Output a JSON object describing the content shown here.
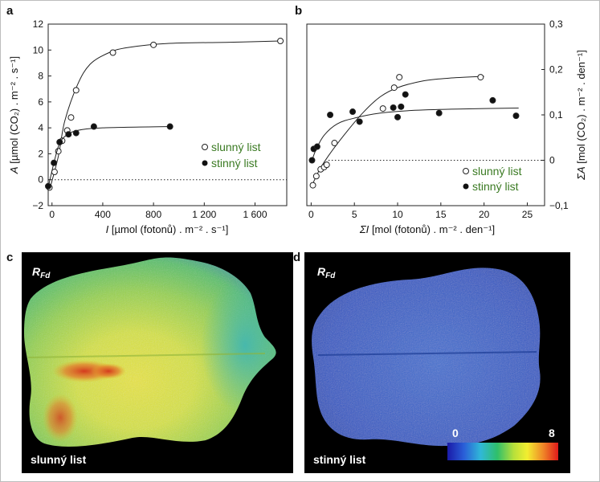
{
  "chart_data": [
    {
      "panel": "a",
      "type": "scatter",
      "xlabel_var": "I",
      "xlabel": "[µmol (fotonů) . m⁻² . s⁻¹]",
      "ylabel_var": "A",
      "ylabel": "[µmol (CO₂) . m⁻² . s⁻¹]",
      "xlim": [
        -30,
        1850
      ],
      "ylim": [
        -2,
        12
      ],
      "x_ticks": [
        0,
        400,
        800,
        1200,
        1600
      ],
      "x_tick_labels": [
        "0",
        "400",
        "800",
        "1 200",
        "1 600"
      ],
      "y_ticks": [
        -2,
        0,
        2,
        4,
        6,
        8,
        10,
        12
      ],
      "y_tick_labels": [
        "−2",
        "0",
        "2",
        "4",
        "6",
        "8",
        "10",
        "12"
      ],
      "reference_line_y": 0,
      "legend_position": "bottom-right",
      "series": [
        {
          "name": "slunný list",
          "marker": "open-circle",
          "points": [
            [
              -20,
              -0.6
            ],
            [
              20,
              0.6
            ],
            [
              50,
              2.2
            ],
            [
              80,
              3.0
            ],
            [
              120,
              3.8
            ],
            [
              150,
              4.8
            ],
            [
              190,
              6.9
            ],
            [
              480,
              9.8
            ],
            [
              800,
              10.4
            ],
            [
              1800,
              10.7
            ]
          ],
          "fit": [
            [
              -20,
              -0.8
            ],
            [
              50,
              1.8
            ],
            [
              100,
              4.5
            ],
            [
              200,
              7.3
            ],
            [
              300,
              8.9
            ],
            [
              450,
              9.8
            ],
            [
              600,
              10.2
            ],
            [
              900,
              10.5
            ],
            [
              1400,
              10.6
            ],
            [
              1800,
              10.7
            ]
          ]
        },
        {
          "name": "stinný list",
          "marker": "filled-circle",
          "points": [
            [
              -30,
              -0.5
            ],
            [
              15,
              1.3
            ],
            [
              60,
              2.9
            ],
            [
              130,
              3.5
            ],
            [
              190,
              3.6
            ],
            [
              330,
              4.1
            ],
            [
              930,
              4.1
            ]
          ],
          "fit": [
            [
              -30,
              -0.6
            ],
            [
              20,
              1.5
            ],
            [
              60,
              2.8
            ],
            [
              110,
              3.4
            ],
            [
              200,
              3.8
            ],
            [
              400,
              4.0
            ],
            [
              930,
              4.1
            ]
          ]
        }
      ]
    },
    {
      "panel": "b",
      "type": "scatter",
      "xlabel_var": "ΣI",
      "xlabel": "[mol (fotonů) . m⁻² . den⁻¹]",
      "ylabel_var": "ΣA",
      "ylabel": "[mol (CO₂) . m⁻² . den⁻¹]",
      "xlim": [
        -0.5,
        27
      ],
      "ylim": [
        -0.1,
        0.3
      ],
      "x_ticks": [
        0,
        5,
        10,
        15,
        20,
        25
      ],
      "x_tick_labels": [
        "0",
        "5",
        "10",
        "15",
        "20",
        "25"
      ],
      "y_ticks": [
        -0.1,
        0,
        0.1,
        0.2,
        0.3
      ],
      "y_tick_labels": [
        "−0,1",
        "0",
        "0,1",
        "0,2",
        "0,3"
      ],
      "reference_line_y": 0,
      "legend_position": "bottom-right",
      "series": [
        {
          "name": "slunný list",
          "marker": "open-circle",
          "points": [
            [
              0.2,
              -0.055
            ],
            [
              0.6,
              -0.035
            ],
            [
              1.1,
              -0.02
            ],
            [
              1.5,
              -0.015
            ],
            [
              1.8,
              -0.01
            ],
            [
              2.7,
              0.038
            ],
            [
              8.3,
              0.114
            ],
            [
              9.6,
              0.16
            ],
            [
              10.2,
              0.183
            ],
            [
              19.6,
              0.183
            ]
          ],
          "fit": [
            [
              0.1,
              -0.055
            ],
            [
              1,
              -0.02
            ],
            [
              2,
              0.01
            ],
            [
              4,
              0.06
            ],
            [
              6,
              0.105
            ],
            [
              8,
              0.14
            ],
            [
              10,
              0.16
            ],
            [
              13,
              0.175
            ],
            [
              16,
              0.181
            ],
            [
              20,
              0.185
            ]
          ]
        },
        {
          "name": "stinný list",
          "marker": "filled-circle",
          "points": [
            [
              0.1,
              0.0
            ],
            [
              0.3,
              0.025
            ],
            [
              0.7,
              0.03
            ],
            [
              2.2,
              0.1
            ],
            [
              4.8,
              0.107
            ],
            [
              5.6,
              0.085
            ],
            [
              9.5,
              0.116
            ],
            [
              10.0,
              0.095
            ],
            [
              10.4,
              0.118
            ],
            [
              10.9,
              0.145
            ],
            [
              14.8,
              0.104
            ],
            [
              21.0,
              0.132
            ],
            [
              23.7,
              0.098
            ]
          ],
          "fit": [
            [
              0.1,
              0.0
            ],
            [
              0.6,
              0.025
            ],
            [
              1.5,
              0.055
            ],
            [
              3,
              0.08
            ],
            [
              5,
              0.093
            ],
            [
              8,
              0.104
            ],
            [
              12,
              0.11
            ],
            [
              17,
              0.113
            ],
            [
              24,
              0.115
            ]
          ]
        }
      ]
    },
    {
      "panel": "c",
      "type": "heatmap",
      "label": "RFd",
      "label_sub": "Fd",
      "caption": "slunný list"
    },
    {
      "panel": "d",
      "type": "heatmap",
      "label": "RFd",
      "label_sub": "Fd",
      "caption": "stinný list",
      "colorbar_min": "0",
      "colorbar_max": "8"
    }
  ],
  "panels": {
    "a": "a",
    "b": "b",
    "c": "c",
    "d": "d"
  },
  "colors": {
    "legend_text": "#3a7a22",
    "image_background": "#000000"
  }
}
